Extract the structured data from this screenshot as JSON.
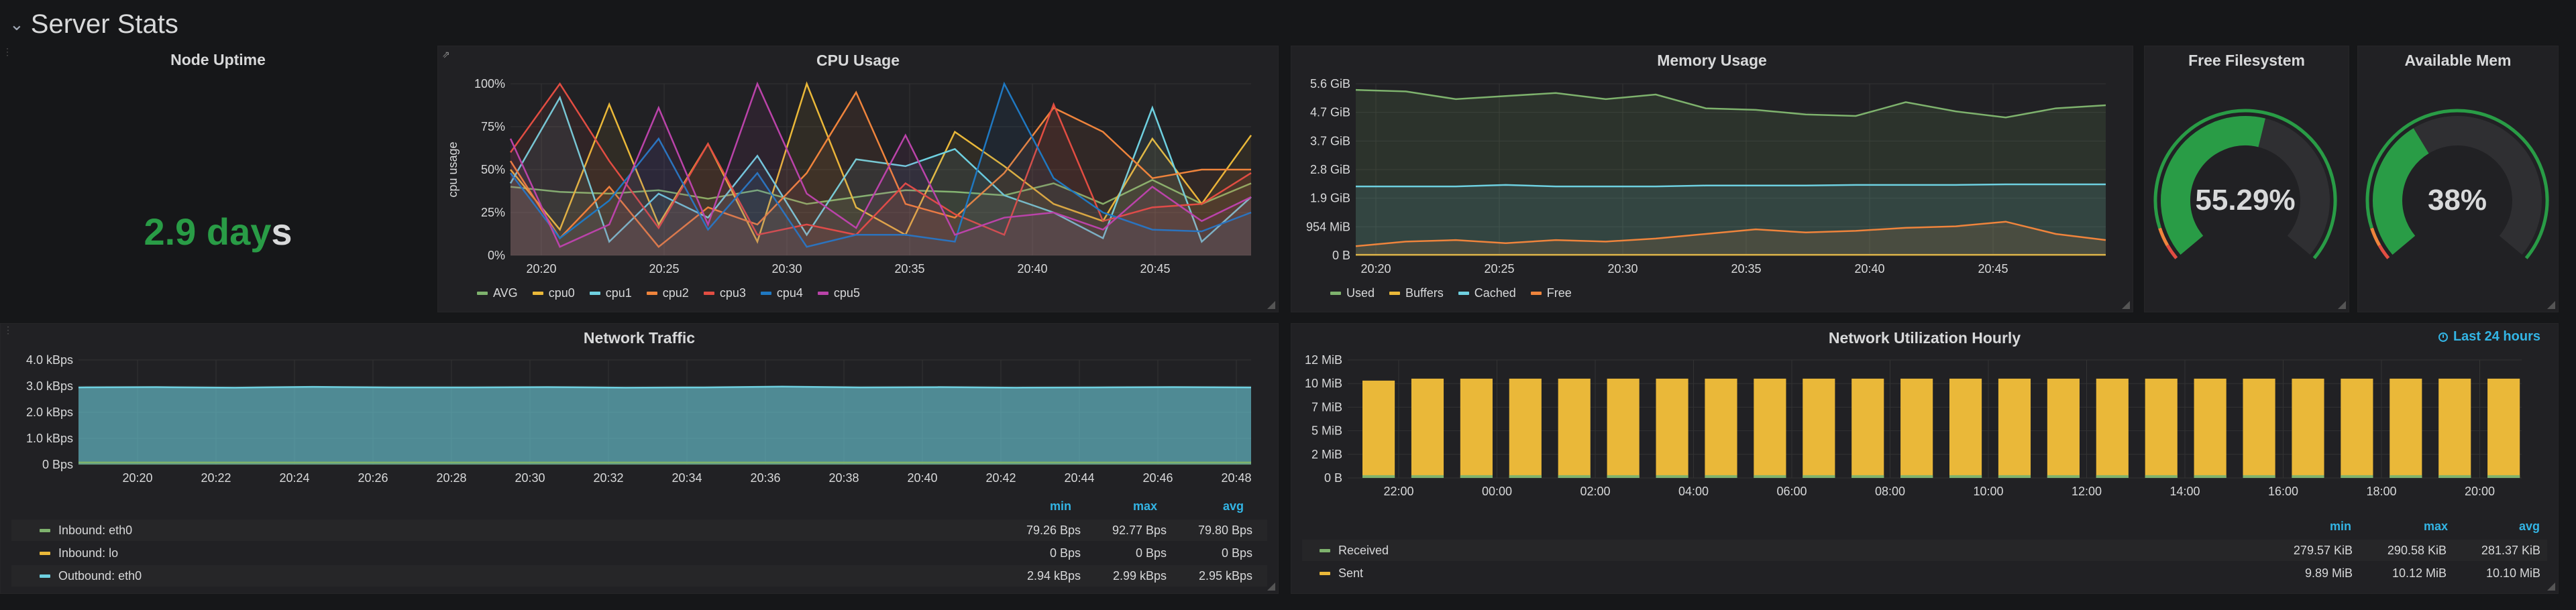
{
  "row": {
    "title": "Server Stats",
    "chevron": "chevron-down-icon"
  },
  "colors": {
    "green": "#299c46",
    "accent": "#33b5e5",
    "yellow": "#eab839",
    "cyan": "#6ed0e0",
    "orange": "#ef843c",
    "red": "#e24d42",
    "blue": "#1f78c1",
    "magenta": "#ba43a9",
    "avg": "#7eb26d"
  },
  "uptime": {
    "title": "Node Uptime",
    "value": "2.9 day",
    "suffix": "s"
  },
  "cpu": {
    "title": "CPU Usage",
    "legend": [
      "AVG",
      "cpu0",
      "cpu1",
      "cpu2",
      "cpu3",
      "cpu4",
      "cpu5"
    ]
  },
  "memory": {
    "title": "Memory Usage",
    "legend": [
      "Used",
      "Buffers",
      "Cached",
      "Free"
    ]
  },
  "fs": {
    "title": "Free Filesystem",
    "value": "55.29%"
  },
  "mem": {
    "title": "Available Mem",
    "value": "38%"
  },
  "traffic": {
    "title": "Network Traffic",
    "col_min": "min",
    "col_max": "max",
    "col_avg": "avg",
    "rows": [
      {
        "name": "Inbound: eth0",
        "min": "79.26 Bps",
        "max": "92.77 Bps",
        "avg": "79.80 Bps"
      },
      {
        "name": "Inbound: lo",
        "min": "0 Bps",
        "max": "0 Bps",
        "avg": "0 Bps"
      },
      {
        "name": "Outbound: eth0",
        "min": "2.94 kBps",
        "max": "2.99 kBps",
        "avg": "2.95 kBps"
      }
    ]
  },
  "hourly": {
    "title": "Network Utilization Hourly",
    "time_range": "Last 24 hours",
    "col_min": "min",
    "col_max": "max",
    "col_avg": "avg",
    "rows": [
      {
        "name": "Received",
        "min": "279.57 KiB",
        "max": "290.58 KiB",
        "avg": "281.37 KiB"
      },
      {
        "name": "Sent",
        "min": "9.89 MiB",
        "max": "10.12 MiB",
        "avg": "10.10 MiB"
      }
    ]
  },
  "chart_data": [
    {
      "type": "line",
      "title": "CPU Usage",
      "ylabel": "cpu usage",
      "yticks": [
        "0%",
        "25%",
        "50%",
        "75%",
        "100%"
      ],
      "ylim": [
        0,
        100
      ],
      "xticks": [
        "20:20",
        "20:25",
        "20:30",
        "20:35",
        "20:40",
        "20:45"
      ],
      "x": [
        "20:18",
        "20:20",
        "20:22",
        "20:24",
        "20:26",
        "20:28",
        "20:30",
        "20:32",
        "20:34",
        "20:36",
        "20:38",
        "20:40",
        "20:42",
        "20:44",
        "20:46",
        "20:48"
      ],
      "series": [
        {
          "name": "AVG",
          "values": [
            40,
            37,
            36,
            38,
            33,
            38,
            30,
            34,
            38,
            37,
            35,
            42,
            30,
            44,
            30,
            42
          ]
        },
        {
          "name": "cpu0",
          "values": [
            50,
            15,
            88,
            18,
            65,
            8,
            100,
            28,
            12,
            72,
            52,
            30,
            20,
            68,
            30,
            70
          ]
        },
        {
          "name": "cpu1",
          "values": [
            42,
            92,
            8,
            36,
            22,
            58,
            12,
            56,
            52,
            62,
            35,
            25,
            10,
            86,
            8,
            34
          ]
        },
        {
          "name": "cpu2",
          "values": [
            55,
            10,
            40,
            5,
            28,
            18,
            48,
            95,
            30,
            22,
            48,
            86,
            72,
            45,
            50,
            50
          ]
        },
        {
          "name": "cpu3",
          "values": [
            60,
            100,
            55,
            16,
            65,
            12,
            18,
            12,
            42,
            24,
            12,
            88,
            20,
            28,
            30,
            48
          ]
        },
        {
          "name": "cpu4",
          "values": [
            48,
            10,
            32,
            68,
            15,
            48,
            5,
            12,
            12,
            8,
            100,
            45,
            25,
            15,
            14,
            25
          ]
        },
        {
          "name": "cpu5",
          "values": [
            68,
            5,
            18,
            86,
            18,
            100,
            36,
            16,
            70,
            12,
            22,
            25,
            15,
            40,
            20,
            34
          ]
        }
      ]
    },
    {
      "type": "area",
      "title": "Memory Usage",
      "yticks": [
        "0 B",
        "954 MiB",
        "1.9 GiB",
        "2.8 GiB",
        "3.7 GiB",
        "4.7 GiB",
        "5.6 GiB"
      ],
      "xticks": [
        "20:20",
        "20:25",
        "20:30",
        "20:35",
        "20:40",
        "20:45"
      ],
      "ylim": [
        0,
        5.6
      ],
      "series": [
        {
          "name": "Used",
          "values": [
            5.4,
            5.35,
            5.1,
            5.2,
            5.3,
            5.1,
            5.25,
            4.8,
            4.75,
            4.6,
            4.55,
            5.0,
            4.7,
            4.5,
            4.8,
            4.9
          ]
        },
        {
          "name": "Buffers",
          "values": [
            0.02,
            0.02,
            0.02,
            0.02,
            0.02,
            0.02,
            0.02,
            0.02,
            0.02,
            0.02,
            0.02,
            0.02,
            0.02,
            0.02,
            0.02,
            0.02
          ]
        },
        {
          "name": "Cached",
          "values": [
            2.25,
            2.25,
            2.25,
            2.3,
            2.25,
            2.25,
            2.25,
            2.28,
            2.28,
            2.28,
            2.3,
            2.3,
            2.3,
            2.32,
            2.32,
            2.32
          ]
        },
        {
          "name": "Free",
          "values": [
            0.3,
            0.45,
            0.5,
            0.4,
            0.5,
            0.45,
            0.55,
            0.7,
            0.85,
            0.75,
            0.8,
            0.9,
            0.95,
            1.1,
            0.7,
            0.5
          ]
        }
      ]
    },
    {
      "type": "area",
      "title": "Network Traffic",
      "yticks": [
        "0 Bps",
        "1.0 kBps",
        "2.0 kBps",
        "3.0 kBps",
        "4.0 kBps"
      ],
      "ylim": [
        0,
        4.0
      ],
      "xticks": [
        "20:20",
        "20:22",
        "20:24",
        "20:26",
        "20:28",
        "20:30",
        "20:32",
        "20:34",
        "20:36",
        "20:38",
        "20:40",
        "20:42",
        "20:44",
        "20:46",
        "20:48"
      ],
      "series": [
        {
          "name": "Outbound: eth0",
          "values": [
            2.95,
            2.96,
            2.94,
            2.97,
            2.95,
            2.95,
            2.96,
            2.94,
            2.95,
            2.98,
            2.95,
            2.96,
            2.94,
            2.95,
            2.96,
            2.95
          ]
        },
        {
          "name": "Inbound: eth0",
          "values": [
            0.08,
            0.08,
            0.08,
            0.08,
            0.08,
            0.08,
            0.08,
            0.08,
            0.08,
            0.08,
            0.08,
            0.08,
            0.08,
            0.08,
            0.08,
            0.08
          ]
        }
      ]
    },
    {
      "type": "bar",
      "title": "Network Utilization Hourly",
      "yticks": [
        "0 B",
        "2 MiB",
        "5 MiB",
        "7 MiB",
        "10 MiB",
        "12 MiB"
      ],
      "ylim": [
        0,
        12
      ],
      "xticks": [
        "22:00",
        "00:00",
        "02:00",
        "04:00",
        "06:00",
        "08:00",
        "10:00",
        "12:00",
        "14:00",
        "16:00",
        "18:00",
        "20:00"
      ],
      "series": [
        {
          "name": "Sent",
          "values": [
            9.9,
            10.1,
            10.1,
            10.1,
            10.1,
            10.1,
            10.1,
            10.1,
            10.1,
            10.1,
            10.1,
            10.1,
            10.1,
            10.1,
            10.1,
            10.1,
            10.1,
            10.1,
            10.1,
            10.1,
            10.1,
            10.1,
            10.1,
            10.1
          ]
        },
        {
          "name": "Received",
          "values": [
            0.28,
            0.28,
            0.28,
            0.28,
            0.28,
            0.28,
            0.28,
            0.28,
            0.28,
            0.28,
            0.28,
            0.28,
            0.28,
            0.28,
            0.28,
            0.28,
            0.28,
            0.28,
            0.28,
            0.28,
            0.28,
            0.28,
            0.28,
            0.28
          ]
        }
      ]
    }
  ]
}
